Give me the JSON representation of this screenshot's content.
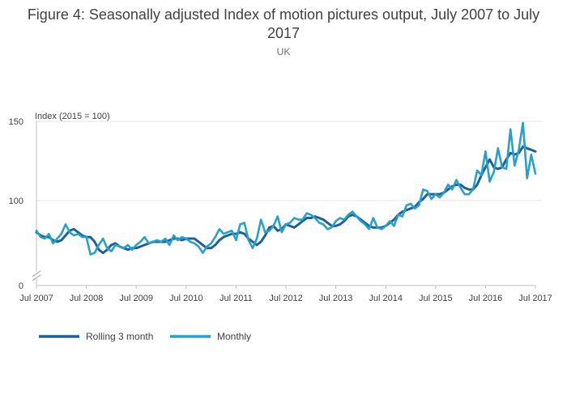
{
  "chart_data": {
    "type": "line",
    "title": "Figure 4: Seasonally adjusted Index of motion pictures output, July 2007 to July 2017",
    "subtitle": "UK",
    "ylabel": "Index (2015 = 100)",
    "xlabel": "",
    "ylim": [
      0,
      150
    ],
    "y_axis_break": true,
    "yticks": [
      0,
      100,
      150
    ],
    "x_start": "Jul 2007",
    "x_end": "Jul 2017",
    "xticks": [
      "Jul 2007",
      "Jul 2008",
      "Jul 2009",
      "Jul 2010",
      "Jul 2011",
      "Jul 2012",
      "Jul 2013",
      "Jul 2014",
      "Jul 2015",
      "Jul 2016",
      "Jul 2017"
    ],
    "grid": true,
    "legend_position": "bottom-left",
    "series": [
      {
        "name": "Rolling 3 month",
        "color": "#206095",
        "values": [
          80,
          78,
          77,
          77,
          75,
          74,
          75,
          78,
          81,
          82,
          80,
          78,
          77,
          77,
          74,
          69,
          67,
          69,
          72,
          73,
          71,
          70,
          69,
          70,
          70,
          71,
          72,
          73,
          74,
          74,
          74,
          74,
          75,
          76,
          76,
          75,
          76,
          76,
          76,
          74,
          72,
          70,
          70,
          72,
          75,
          77,
          78,
          79,
          79,
          80,
          79,
          76,
          74,
          72,
          74,
          78,
          83,
          84,
          81,
          82,
          85,
          84,
          83,
          85,
          87,
          89,
          89,
          90,
          89,
          88,
          86,
          84,
          84,
          85,
          87,
          90,
          91,
          90,
          88,
          86,
          84,
          83,
          83,
          83,
          84,
          86,
          88,
          91,
          93,
          94,
          95,
          96,
          99,
          101,
          104,
          104,
          104,
          104,
          105,
          107,
          109,
          110,
          110,
          108,
          107,
          107,
          110,
          116,
          121,
          126,
          121,
          120,
          121,
          126,
          130,
          129,
          130,
          134,
          133,
          132,
          131
        ]
      },
      {
        "name": "Monthly",
        "color": "#27a0cc",
        "values": [
          81,
          77,
          76,
          79,
          73,
          76,
          79,
          85,
          80,
          78,
          79,
          77,
          77,
          66,
          67,
          72,
          76,
          70,
          68,
          72,
          71,
          70,
          72,
          69,
          72,
          74,
          77,
          73,
          74,
          75,
          74,
          76,
          72,
          78,
          75,
          77,
          76,
          74,
          73,
          71,
          67,
          71,
          73,
          77,
          82,
          79,
          80,
          81,
          75,
          85,
          86,
          75,
          70,
          76,
          88,
          80,
          81,
          84,
          90,
          80,
          85,
          86,
          89,
          88,
          88,
          92,
          91,
          89,
          86,
          85,
          82,
          83,
          87,
          89,
          88,
          91,
          93,
          90,
          87,
          85,
          82,
          89,
          83,
          82,
          84,
          87,
          84,
          91,
          90,
          97,
          98,
          95,
          97,
          107,
          106,
          101,
          104,
          102,
          105,
          110,
          107,
          113,
          108,
          104,
          104,
          107,
          119,
          116,
          131,
          112,
          118,
          133,
          121,
          120,
          145,
          122,
          132,
          149,
          114,
          129,
          117
        ]
      }
    ]
  }
}
